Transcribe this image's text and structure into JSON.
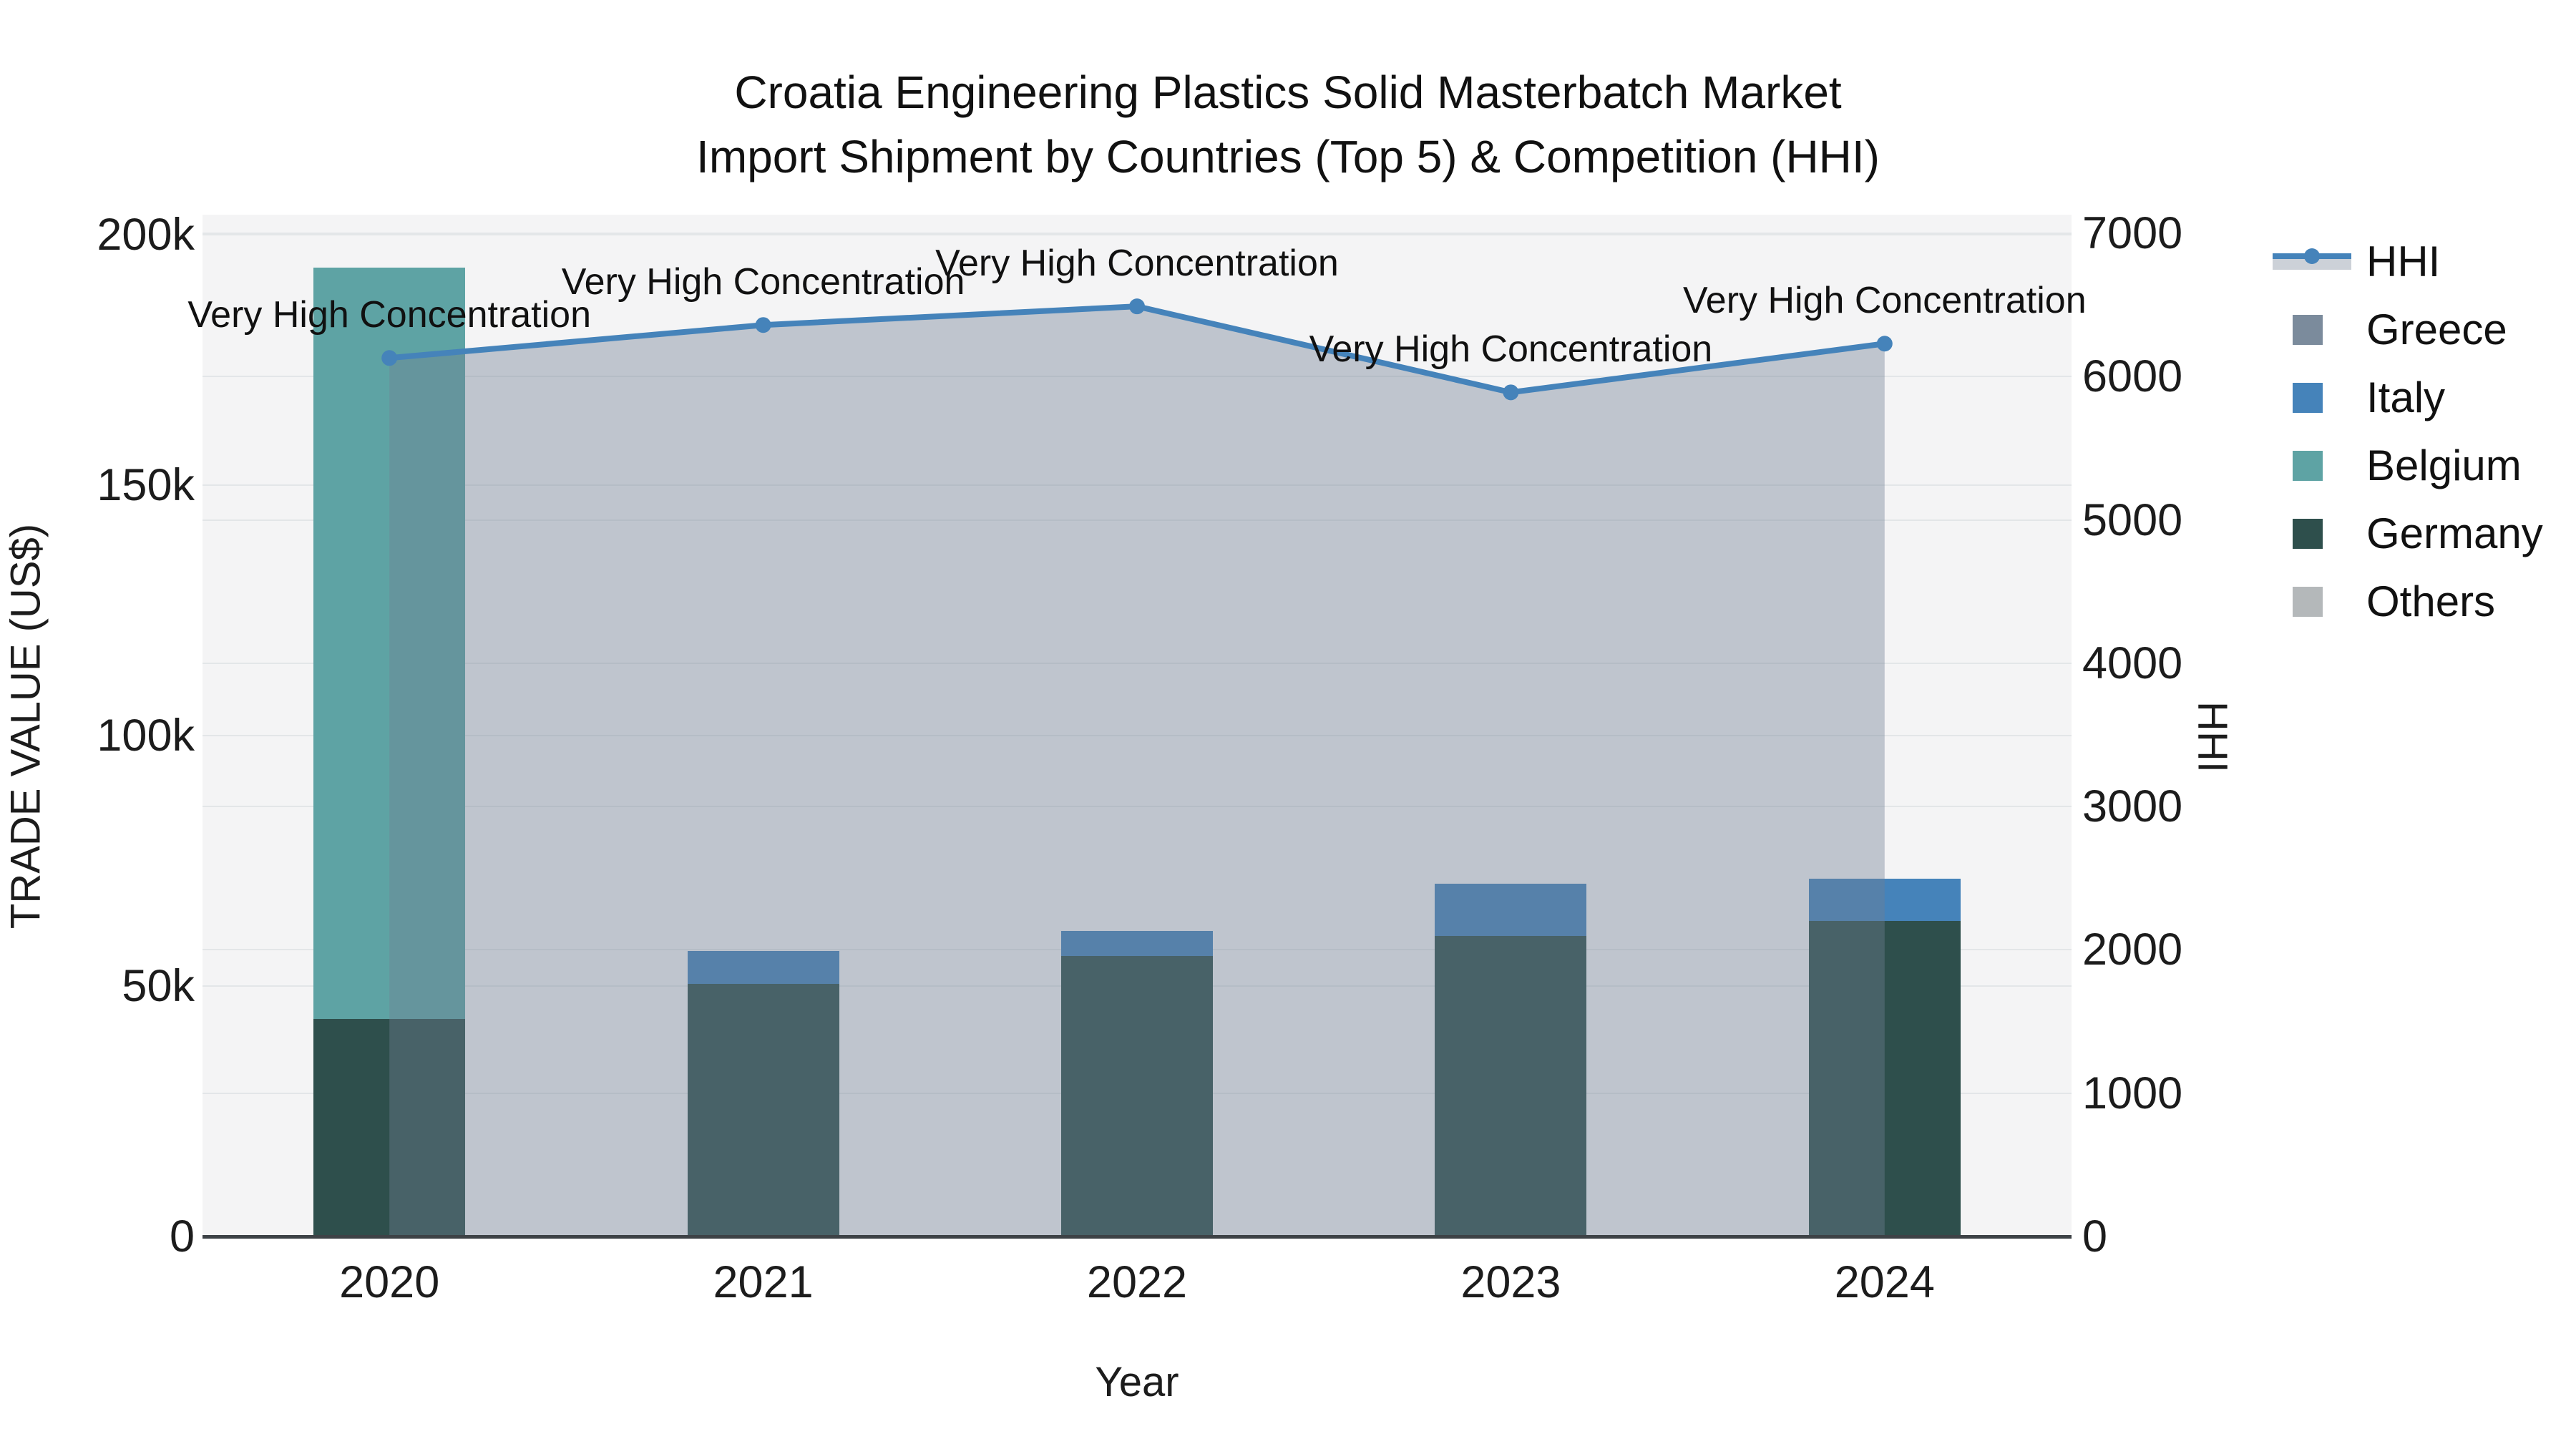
{
  "title": {
    "line1": "Croatia Engineering Plastics Solid Masterbatch Market",
    "line2": "Import Shipment by Countries (Top 5) & Competition (HHI)"
  },
  "axes": {
    "x_title": "Year",
    "y_left_title": "TRADE VALUE (US$)",
    "y_right_title": "HHI"
  },
  "legend": {
    "items": [
      {
        "label": "HHI",
        "type": "line",
        "color": "#4583ba"
      },
      {
        "label": "Greece",
        "type": "swatch",
        "color": "#7b8b9c"
      },
      {
        "label": "Italy",
        "type": "swatch",
        "color": "#4583ba"
      },
      {
        "label": "Belgium",
        "type": "swatch",
        "color": "#5ea3a4"
      },
      {
        "label": "Germany",
        "type": "swatch",
        "color": "#2e4f4c"
      },
      {
        "label": "Others",
        "type": "swatch",
        "color": "#b4b8ba"
      }
    ]
  },
  "chart_data": {
    "type": "bar+line",
    "title": "Croatia Engineering Plastics Solid Masterbatch Market — Import Shipment by Countries (Top 5) & Competition (HHI)",
    "categories": [
      "2020",
      "2021",
      "2022",
      "2023",
      "2024"
    ],
    "xlabel": "Year",
    "ylabel_left": "TRADE VALUE (US$)",
    "ylabel_right": "HHI",
    "ylim_left": [
      0,
      204000
    ],
    "ylim_right": [
      0,
      7130
    ],
    "grid": true,
    "legend_position": "right-outside",
    "series": [
      {
        "name": "Greece",
        "color": "#7b8b9c",
        "values": [
          0,
          0,
          0,
          0,
          0
        ]
      },
      {
        "name": "Italy",
        "color": "#4583ba",
        "values": [
          0,
          6500,
          5000,
          10500,
          8500
        ]
      },
      {
        "name": "Belgium",
        "color": "#5ea3a4",
        "values": [
          150000,
          0,
          0,
          0,
          0
        ]
      },
      {
        "name": "Germany",
        "color": "#2e4f4c",
        "values": [
          43500,
          50500,
          56000,
          60000,
          63000
        ]
      },
      {
        "name": "Others",
        "color": "#b4b8ba",
        "values": [
          0,
          0,
          0,
          0,
          0
        ]
      }
    ],
    "stack_order": [
      "Germany",
      "Belgium",
      "Italy",
      "Greece",
      "Others"
    ],
    "bar_totals": [
      193500,
      57000,
      61000,
      70500,
      71500
    ],
    "line": {
      "name": "HHI",
      "axis": "right",
      "color": "#4583ba",
      "area_color": "rgba(113,128,148,0.40)",
      "values": [
        6130,
        6360,
        6490,
        5890,
        6230
      ]
    },
    "annotations": [
      "Very High Concentration",
      "Very High Concentration",
      "Very High Concentration",
      "Very High Concentration",
      "Very High Concentration"
    ],
    "yticks_left": [
      {
        "v": 0,
        "label": "0"
      },
      {
        "v": 50000,
        "label": "50k"
      },
      {
        "v": 100000,
        "label": "100k"
      },
      {
        "v": 150000,
        "label": "150k"
      },
      {
        "v": 200000,
        "label": "200k"
      }
    ],
    "yticks_right": [
      {
        "v": 0,
        "label": "0"
      },
      {
        "v": 1000,
        "label": "1000"
      },
      {
        "v": 2000,
        "label": "2000"
      },
      {
        "v": 3000,
        "label": "3000"
      },
      {
        "v": 4000,
        "label": "4000"
      },
      {
        "v": 5000,
        "label": "5000"
      },
      {
        "v": 6000,
        "label": "6000"
      },
      {
        "v": 7000,
        "label": "7000"
      }
    ]
  }
}
